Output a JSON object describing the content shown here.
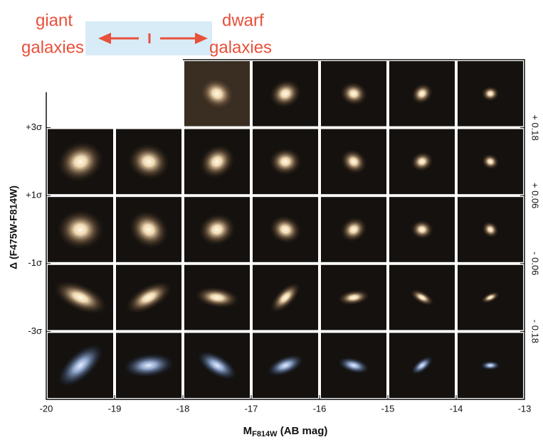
{
  "chart_data": {
    "type": "image-grid",
    "annotations": {
      "left": [
        "giant",
        "galaxies"
      ],
      "right": [
        "dwarf",
        "galaxies"
      ]
    },
    "xlabel": {
      "main": "M",
      "sub": "F814W",
      "rest": " (AB mag)"
    },
    "ylabel": "Δ (F475W-F814W)",
    "xlim": [
      -20,
      -13
    ],
    "xticks": [
      -20,
      -19,
      -18,
      -17,
      -16,
      -15,
      -14,
      -13
    ],
    "ylim": [
      -5,
      5
    ],
    "yticks": [
      {
        "value": 3,
        "label": "+3σ"
      },
      {
        "value": 1,
        "label": "+1σ"
      },
      {
        "value": -1,
        "label": "-1σ"
      },
      {
        "value": -3,
        "label": "-3σ"
      }
    ],
    "y2lim": [
      -0.3,
      0.3
    ],
    "y2ticks": [
      {
        "value": 0.18,
        "label": "+ 0.18"
      },
      {
        "value": 0.06,
        "label": "+ 0.06"
      },
      {
        "value": -0.06,
        "label": "- 0.06"
      },
      {
        "value": -0.18,
        "label": "- 0.18"
      }
    ]
  }
}
